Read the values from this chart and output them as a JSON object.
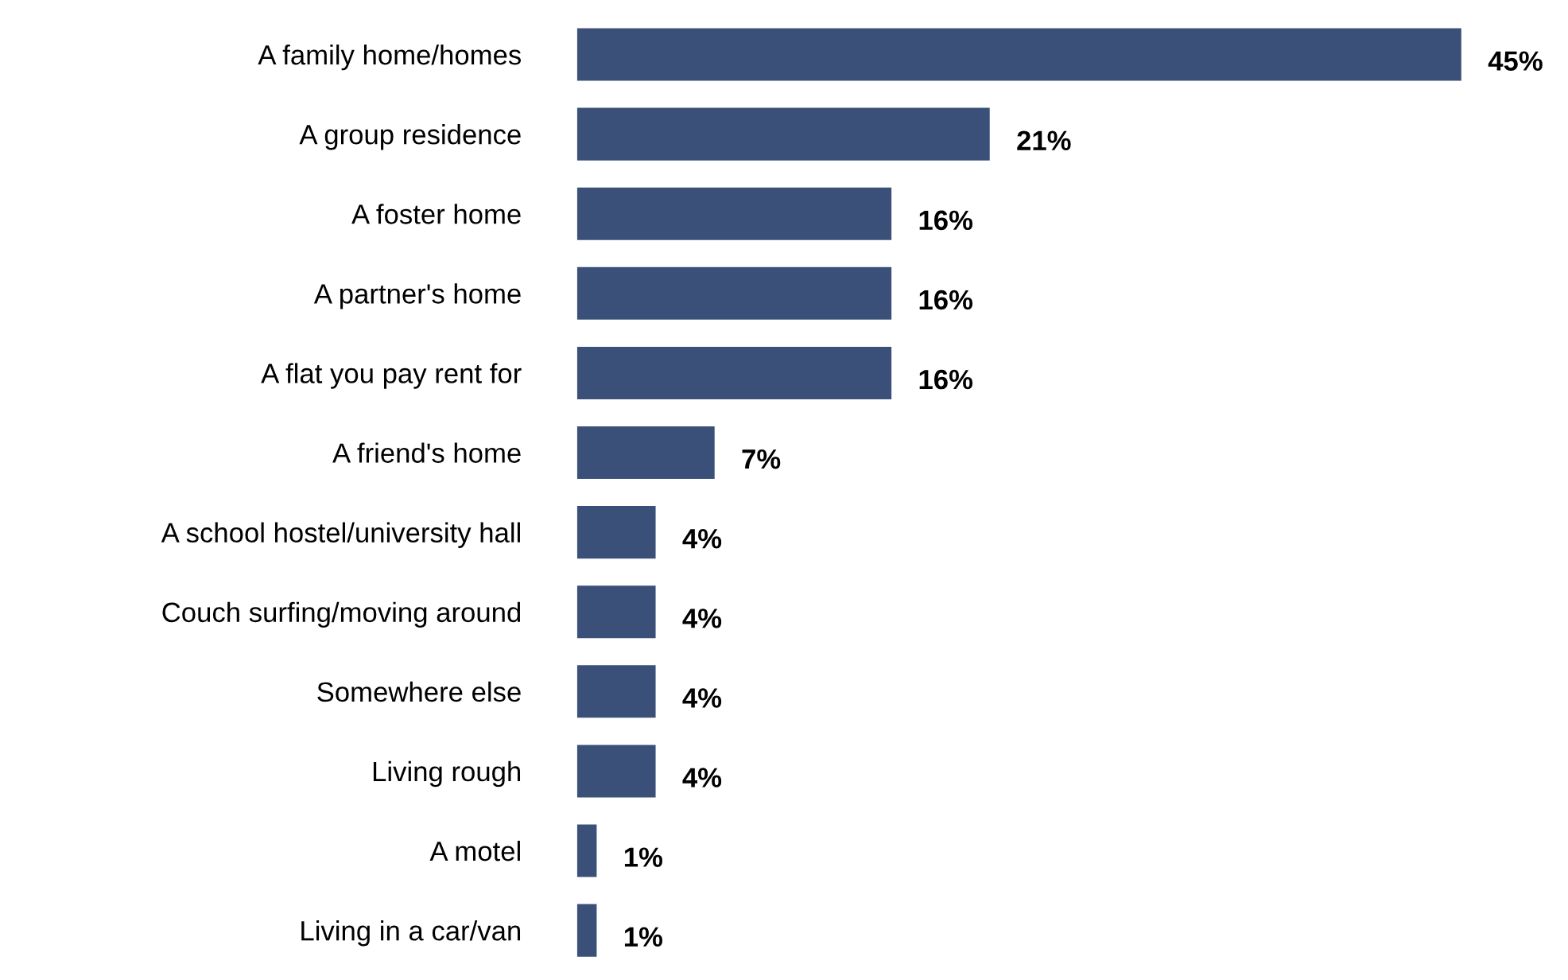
{
  "chart_data": {
    "type": "bar",
    "orientation": "horizontal",
    "categories": [
      "A family home/homes",
      "A group residence",
      "A foster home",
      "A partner's home",
      "A flat you pay rent for",
      "A friend's home",
      "A school hostel/university hall",
      "Couch surfing/moving around",
      "Somewhere else",
      "Living rough",
      "A motel",
      "Living in a car/van"
    ],
    "values": [
      45,
      21,
      16,
      16,
      16,
      7,
      4,
      4,
      4,
      4,
      1,
      1
    ],
    "value_labels": [
      "45%",
      "21%",
      "16%",
      "16%",
      "16%",
      "7%",
      "4%",
      "4%",
      "4%",
      "4%",
      "1%",
      "1%"
    ],
    "color": "#3a5079",
    "tick_labels": "y",
    "grid": false,
    "legend": false
  }
}
